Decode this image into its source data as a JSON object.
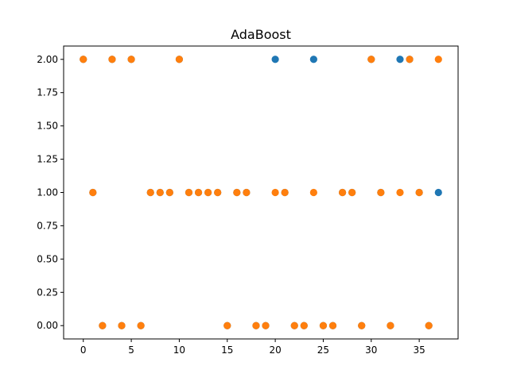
{
  "chart_data": {
    "type": "scatter",
    "title": "AdaBoost",
    "xlabel": "",
    "ylabel": "",
    "xlim": [
      -2.05,
      39.05
    ],
    "ylim": [
      -0.1,
      2.1
    ],
    "xticks": [
      0,
      5,
      10,
      15,
      20,
      25,
      30,
      35
    ],
    "yticks": [
      0.0,
      0.25,
      0.5,
      0.75,
      1.0,
      1.25,
      1.5,
      1.75,
      2.0
    ],
    "ytick_labels": [
      "0.00",
      "0.25",
      "0.50",
      "0.75",
      "1.00",
      "1.25",
      "1.50",
      "1.75",
      "2.00"
    ],
    "grid": false,
    "series": [
      {
        "color": "#1f77b4",
        "x": [
          0,
          1,
          2,
          3,
          4,
          5,
          6,
          7,
          8,
          9,
          10,
          11,
          12,
          13,
          14,
          15,
          16,
          17,
          18,
          19,
          20,
          21,
          22,
          23,
          24,
          25,
          26,
          27,
          28,
          29,
          30,
          31,
          32,
          33,
          34,
          35,
          36,
          37
        ],
        "y": [
          2,
          1,
          0,
          2,
          0,
          2,
          0,
          1,
          1,
          1,
          2,
          1,
          1,
          1,
          1,
          0,
          1,
          1,
          0,
          0,
          2,
          1,
          0,
          0,
          2,
          0,
          0,
          1,
          1,
          0,
          2,
          1,
          0,
          2,
          2,
          1,
          0,
          1
        ]
      },
      {
        "color": "#ff7f0e",
        "x": [
          0,
          1,
          2,
          3,
          4,
          5,
          6,
          7,
          8,
          9,
          10,
          11,
          12,
          13,
          14,
          15,
          16,
          17,
          18,
          19,
          20,
          21,
          22,
          23,
          24,
          25,
          26,
          27,
          28,
          29,
          30,
          31,
          32,
          33,
          34,
          35,
          36,
          37
        ],
        "y": [
          2,
          1,
          0,
          2,
          0,
          2,
          0,
          1,
          1,
          1,
          2,
          1,
          1,
          1,
          1,
          0,
          1,
          1,
          0,
          0,
          1,
          1,
          0,
          0,
          1,
          0,
          0,
          1,
          1,
          0,
          2,
          1,
          0,
          1,
          2,
          1,
          0,
          2
        ]
      }
    ]
  }
}
